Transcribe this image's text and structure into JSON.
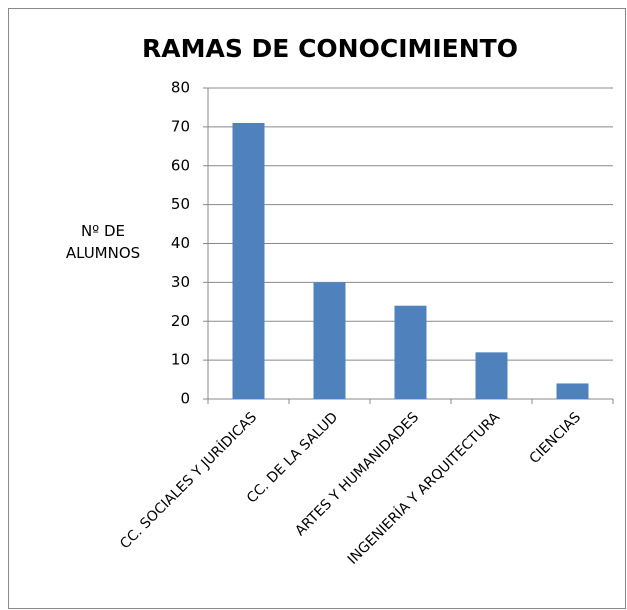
{
  "chart_data": {
    "type": "bar",
    "title": "RAMAS DE CONOCIMIENTO",
    "ylabel": "Nº DE ALUMNOS",
    "categories": [
      "CC. SOCIALES Y JURÍDICAS",
      "CC. DE LA SALUD",
      "ARTES Y HUMANIDADES",
      "INGENIERÍA Y ARQUITECTURA",
      "CIENCIAS"
    ],
    "values": [
      71,
      30,
      24,
      12,
      4
    ],
    "color": "#4f81bd",
    "ylim": [
      0,
      80
    ],
    "yticks": [
      0,
      10,
      20,
      30,
      40,
      50,
      60,
      70,
      80
    ],
    "grid": true
  }
}
